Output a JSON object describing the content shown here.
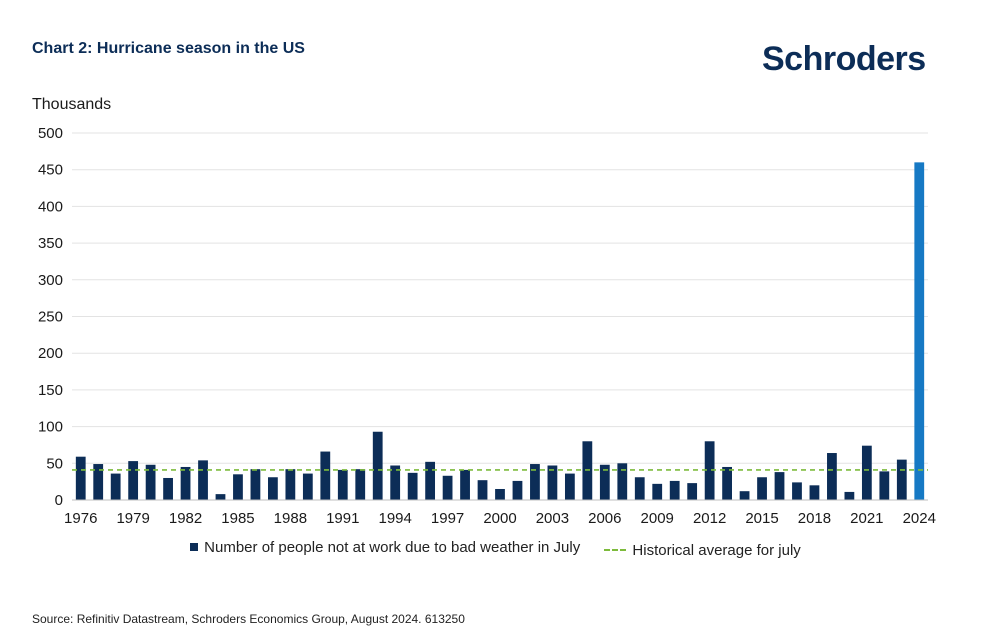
{
  "header": {
    "title": "Chart 2: Hurricane season in the US",
    "logo": "Schroders"
  },
  "colors": {
    "bar": "#0c2d57",
    "highlight_bar": "#1679c4",
    "average_line": "#7dbb3c",
    "grid": "#e3e3e3"
  },
  "legend": {
    "series_label": "Number of people not at work due to bad weather in July",
    "average_label": "Historical average for july"
  },
  "source": "Source: Refinitiv Datastream, Schroders Economics Group, August 2024. 613250",
  "chart_data": {
    "type": "bar",
    "ylabel": "Thousands",
    "ylim": [
      0,
      500
    ],
    "yticks": [
      0,
      50,
      100,
      150,
      200,
      250,
      300,
      350,
      400,
      450,
      500
    ],
    "xtick_labels": [
      "1976",
      "1979",
      "1982",
      "1985",
      "1988",
      "1991",
      "1994",
      "1997",
      "2000",
      "2003",
      "2006",
      "2009",
      "2012",
      "2015",
      "2018",
      "2021",
      "2024"
    ],
    "grid": true,
    "legend_position": "bottom",
    "categories": [
      "1976",
      "1977",
      "1978",
      "1979",
      "1980",
      "1981",
      "1982",
      "1983",
      "1984",
      "1985",
      "1986",
      "1987",
      "1988",
      "1989",
      "1990",
      "1991",
      "1992",
      "1993",
      "1994",
      "1995",
      "1996",
      "1997",
      "1998",
      "1999",
      "2000",
      "2001",
      "2002",
      "2003",
      "2004",
      "2005",
      "2006",
      "2007",
      "2008",
      "2009",
      "2010",
      "2011",
      "2012",
      "2013",
      "2014",
      "2015",
      "2016",
      "2017",
      "2018",
      "2019",
      "2020",
      "2021",
      "2022",
      "2023",
      "2024"
    ],
    "series": [
      {
        "name": "Number of people not at work due to bad weather in July",
        "values": [
          59,
          49,
          36,
          53,
          48,
          30,
          45,
          54,
          8,
          35,
          42,
          31,
          42,
          36,
          66,
          41,
          42,
          93,
          47,
          37,
          52,
          33,
          41,
          27,
          15,
          26,
          49,
          47,
          36,
          80,
          48,
          50,
          31,
          22,
          26,
          23,
          80,
          45,
          12,
          31,
          38,
          24,
          20,
          64,
          11,
          74,
          39,
          55,
          460
        ]
      },
      {
        "name": "Historical average for july",
        "type": "line",
        "value": 41
      }
    ]
  }
}
